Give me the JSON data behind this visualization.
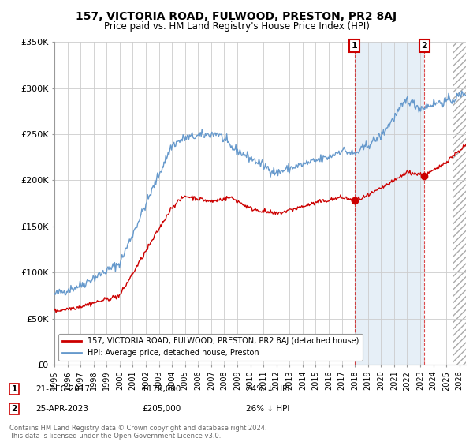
{
  "title": "157, VICTORIA ROAD, FULWOOD, PRESTON, PR2 8AJ",
  "subtitle": "Price paid vs. HM Land Registry's House Price Index (HPI)",
  "legend_property": "157, VICTORIA ROAD, FULWOOD, PRESTON, PR2 8AJ (detached house)",
  "legend_hpi": "HPI: Average price, detached house, Preston",
  "sale1_date_label": "1",
  "sale1_date": "21-DEC-2017",
  "sale1_price": "£178,000",
  "sale1_pct": "24% ↓ HPI",
  "sale2_date_label": "2",
  "sale2_date": "25-APR-2023",
  "sale2_price": "£205,000",
  "sale2_pct": "26% ↓ HPI",
  "copyright": "Contains HM Land Registry data © Crown copyright and database right 2024.\nThis data is licensed under the Open Government Licence v3.0.",
  "ylim": [
    0,
    350000
  ],
  "yticks": [
    0,
    50000,
    100000,
    150000,
    200000,
    250000,
    300000,
    350000
  ],
  "ytick_labels": [
    "£0",
    "£50K",
    "£100K",
    "£150K",
    "£200K",
    "£250K",
    "£300K",
    "£350K"
  ],
  "xlim_start": 1995.0,
  "xlim_end": 2026.5,
  "property_color": "#cc0000",
  "hpi_color": "#6699cc",
  "sale1_year": 2017.97,
  "sale1_value": 178000,
  "sale2_year": 2023.32,
  "sale2_value": 205000,
  "background_color": "#ffffff",
  "grid_color": "#cccccc",
  "shaded_color": "#dce9f5",
  "hatch_start": 2025.5
}
